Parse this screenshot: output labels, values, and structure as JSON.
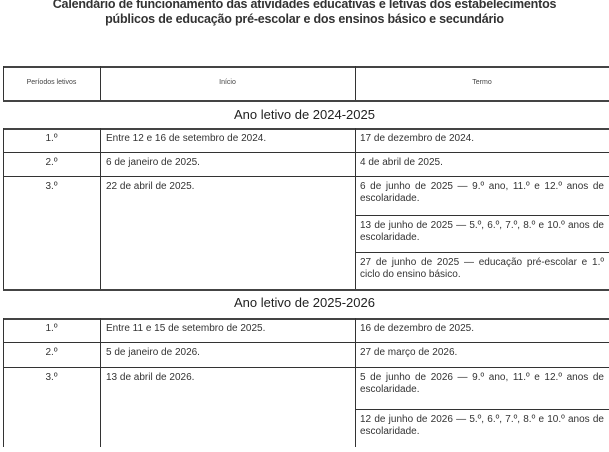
{
  "title": {
    "line1": "Calendário de funcionamento das atividades educativas e letivas dos estabelecimentos",
    "line2": "públicos de educação pré-escolar e dos ensinos básico e secundário"
  },
  "headers": {
    "periodos": "Períodos letivos",
    "inicio": "Início",
    "termo": "Termo"
  },
  "sections": [
    {
      "title": "Ano letivo de 2024-2025",
      "rows": [
        {
          "periodo": "1.º",
          "inicio": "Entre 12 e 16 de setembro de 2024.",
          "termo": [
            "17 de dezembro de 2024."
          ]
        },
        {
          "periodo": "2.º",
          "inicio": "6 de janeiro de 2025.",
          "termo": [
            "4 de abril de 2025."
          ]
        },
        {
          "periodo": "3.º",
          "inicio": "22 de abril de 2025.",
          "termo": [
            "6 de junho de 2025 — 9.º ano, 11.º e 12.º anos de escolaridade.",
            "13 de junho de 2025 — 5.º, 6.º, 7.º, 8.º e 10.º anos de escolaridade.",
            "27 de junho de 2025 — educação pré-escolar e 1.º ciclo do ensino básico."
          ]
        }
      ]
    },
    {
      "title": "Ano letivo de 2025-2026",
      "rows": [
        {
          "periodo": "1.º",
          "inicio": "Entre 11 e 15 de setembro de 2025.",
          "termo": [
            "16 de dezembro de 2025."
          ]
        },
        {
          "periodo": "2.º",
          "inicio": "5 de janeiro de 2026.",
          "termo": [
            "27 de março de 2026."
          ]
        },
        {
          "periodo": "3.º",
          "inicio": "13 de abril de 2026.",
          "termo": [
            "5 de junho de 2026 — 9.º ano, 11.º e 12.º anos de escolaridade.",
            "12 de junho de 2026 — 5.º, 6.º, 7.º, 8.º e 10.º anos de escolaridade."
          ]
        }
      ]
    }
  ]
}
